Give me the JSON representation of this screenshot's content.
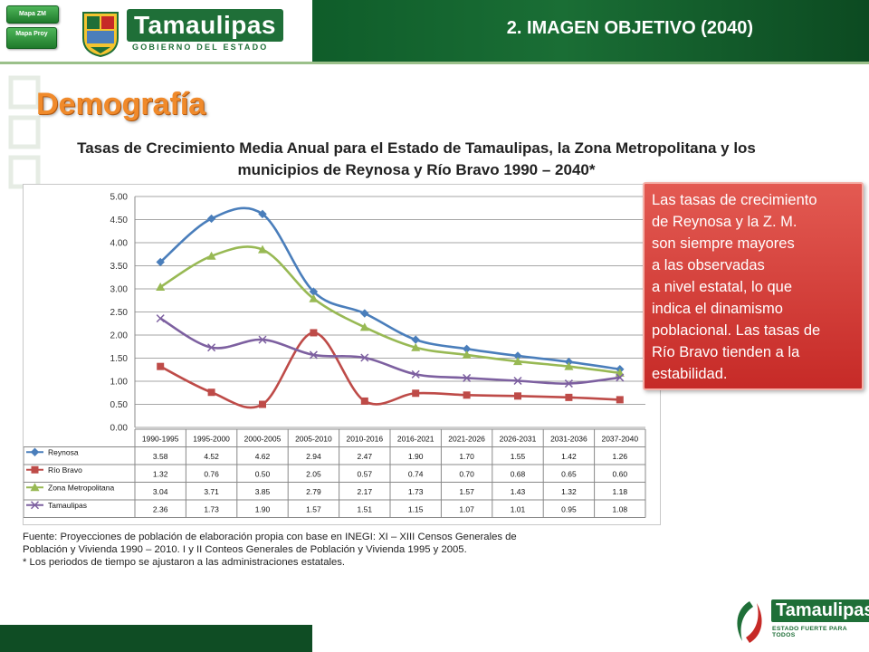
{
  "header": {
    "title": "2. IMAGEN OBJETIVO (2040)",
    "map_zm_label": "Mapa ZM",
    "map_proy_label": "Mapa Proy",
    "logo_text": "Tamaulipas",
    "logo_subtext": "GOBIERNO DEL ESTADO"
  },
  "section_title": "Demografía",
  "subtitle": "Tasas de Crecimiento Media Anual para el Estado de Tamaulipas, la Zona Metropolitana y los municipios de Reynosa y Río Bravo 1990 – 2040*",
  "note": "Las tasas de crecimiento\nde Reynosa y la Z. M.\nson  siempre mayores\na las observadas\na nivel estatal, lo que\nindica el dinamismo\npoblacional.  Las tasas de\nRío Bravo tienden a la\nestabilidad.",
  "source": "Fuente: Proyecciones de población de elaboración propia con base en INEGI:  XI – XIII Censos Generales  de\nPoblación y Vivienda 1990 – 2010. I y II Conteos Generales   de Población y Vivienda 1995 y 2005.\n* Los periodos de tiempo se ajustaron a las administraciones estatales.",
  "footer": {
    "logo_text": "Tamaulipas",
    "slogan": "ESTADO FUERTE PARA TODOS"
  },
  "colors": {
    "brand_green": "#1f6f38",
    "title_orange": "#f08a2b",
    "note_red": "#c62a27"
  },
  "chart_data": {
    "type": "line",
    "title": "",
    "xlabel": "",
    "ylabel": "",
    "ylim": [
      0,
      5
    ],
    "y_ticks": [
      "5.00",
      "4.50",
      "4.00",
      "3.50",
      "3.00",
      "2.50",
      "2.00",
      "1.50",
      "1.00",
      "0.50",
      "0.00"
    ],
    "grid": true,
    "legend": "data-table",
    "categories": [
      "1990-1995",
      "1995-2000",
      "2000-2005",
      "2005-2010",
      "2010-2016",
      "2016-2021",
      "2021-2026",
      "2026-2031",
      "2031-2036",
      "2037-2040"
    ],
    "series": [
      {
        "name": "Reynosa",
        "color": "#4a7ebb",
        "marker": "diamond",
        "values": [
          3.58,
          4.52,
          4.62,
          2.94,
          2.47,
          1.9,
          1.7,
          1.55,
          1.42,
          1.26
        ],
        "labels": [
          "3.58",
          "4.52",
          "4.62",
          "2.94",
          "2.47",
          "1.90",
          "1.70",
          "1.55",
          "1.42",
          "1.26"
        ]
      },
      {
        "name": "Río Bravo",
        "color": "#be4b48",
        "marker": "square",
        "values": [
          1.32,
          0.76,
          0.5,
          2.05,
          0.57,
          0.74,
          0.7,
          0.68,
          0.65,
          0.6
        ],
        "labels": [
          "1.32",
          "0.76",
          "0.50",
          "2.05",
          "0.57",
          "0.74",
          "0.70",
          "0.68",
          "0.65",
          "0.60"
        ]
      },
      {
        "name": "Zona Metropolitana",
        "color": "#98b954",
        "marker": "triangle",
        "values": [
          3.04,
          3.71,
          3.85,
          2.79,
          2.17,
          1.73,
          1.57,
          1.43,
          1.32,
          1.18
        ],
        "labels": [
          "3.04",
          "3.71",
          "3.85",
          "2.79",
          "2.17",
          "1.73",
          "1.57",
          "1.43",
          "1.32",
          "1.18"
        ]
      },
      {
        "name": "Tamaulipas",
        "color": "#7d60a0",
        "marker": "x",
        "values": [
          2.36,
          1.73,
          1.9,
          1.57,
          1.51,
          1.15,
          1.07,
          1.01,
          0.95,
          1.08
        ],
        "labels": [
          "2.36",
          "1.73",
          "1.90",
          "1.57",
          "1.51",
          "1.15",
          "1.07",
          "1.01",
          "0.95",
          "1.08"
        ]
      }
    ]
  }
}
